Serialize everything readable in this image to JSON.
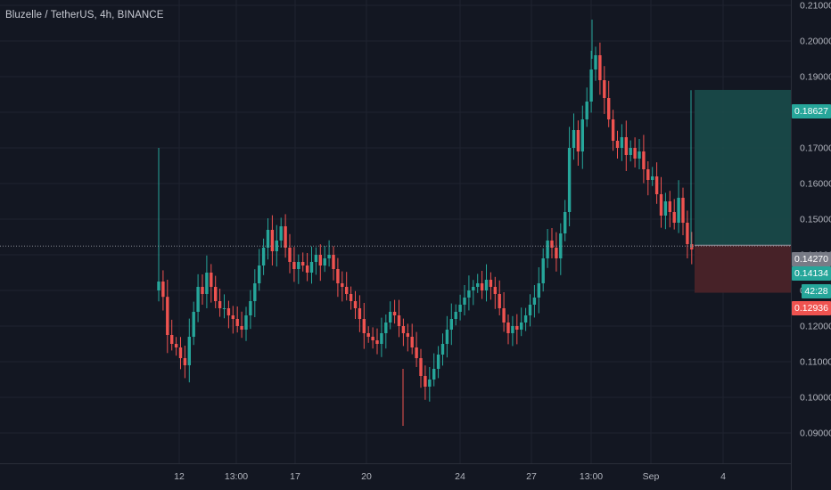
{
  "header": {
    "title": "Bluzelle / TetherUS, 4h, BINANCE"
  },
  "colors": {
    "background": "#131722",
    "grid": "#1f2330",
    "up": "#26a69a",
    "down": "#ef5350",
    "axis_text": "#b2b5be",
    "target_zone": "#1a4b4a",
    "stop_zone": "#4a2329",
    "target_tag": "#26a69a",
    "entry_tag": "#787b86",
    "current_tag": "#26a69a",
    "stop_tag": "#ef5350"
  },
  "price_tags": {
    "target": "0.18627",
    "entry": "0.14270",
    "current": "0.14134",
    "countdown": "42:28",
    "stop": "0.12936"
  },
  "chart_data": {
    "type": "candlestick",
    "title": "Bluzelle / TetherUS, 4h, BINANCE",
    "xlabel": "",
    "ylabel": "",
    "ylim": [
      0.0815,
      0.2115
    ],
    "grid": true,
    "y_ticks": [
      "0.21000",
      "0.20000",
      "0.19000",
      "0.18000",
      "0.17000",
      "0.16000",
      "0.15000",
      "0.14000",
      "0.13000",
      "0.12000",
      "0.11000",
      "0.10000",
      "0.09000"
    ],
    "x_tick_labels": [
      "12",
      "13:00",
      "17",
      "20",
      "24",
      "27",
      "13:00",
      "Sep",
      "4"
    ],
    "position_tool": {
      "entry": 0.1427,
      "target": 0.18627,
      "stop": 0.12936
    },
    "last_price": 0.14134,
    "closes": [
      0.1325,
      0.1282,
      0.1175,
      0.115,
      0.114,
      0.111,
      0.109,
      0.117,
      0.124,
      0.131,
      0.129,
      0.135,
      0.131,
      0.127,
      0.125,
      0.125,
      0.123,
      0.122,
      0.12,
      0.119,
      0.123,
      0.127,
      0.132,
      0.137,
      0.142,
      0.147,
      0.141,
      0.144,
      0.148,
      0.142,
      0.138,
      0.136,
      0.138,
      0.137,
      0.135,
      0.138,
      0.14,
      0.137,
      0.139,
      0.14,
      0.136,
      0.132,
      0.131,
      0.129,
      0.127,
      0.125,
      0.122,
      0.118,
      0.117,
      0.116,
      0.115,
      0.118,
      0.121,
      0.124,
      0.123,
      0.12,
      0.118,
      0.117,
      0.114,
      0.111,
      0.106,
      0.103,
      0.105,
      0.108,
      0.112,
      0.115,
      0.119,
      0.122,
      0.124,
      0.126,
      0.128,
      0.13,
      0.131,
      0.132,
      0.13,
      0.133,
      0.131,
      0.129,
      0.125,
      0.121,
      0.118,
      0.12,
      0.119,
      0.121,
      0.123,
      0.126,
      0.128,
      0.132,
      0.139,
      0.144,
      0.142,
      0.139,
      0.146,
      0.152,
      0.17,
      0.175,
      0.169,
      0.178,
      0.183,
      0.192,
      0.196,
      0.189,
      0.184,
      0.178,
      0.172,
      0.17,
      0.173,
      0.168,
      0.17,
      0.167,
      0.169,
      0.164,
      0.161,
      0.162,
      0.157,
      0.151,
      0.155,
      0.152,
      0.149,
      0.156,
      0.149,
      0.143,
      0.1415
    ]
  }
}
